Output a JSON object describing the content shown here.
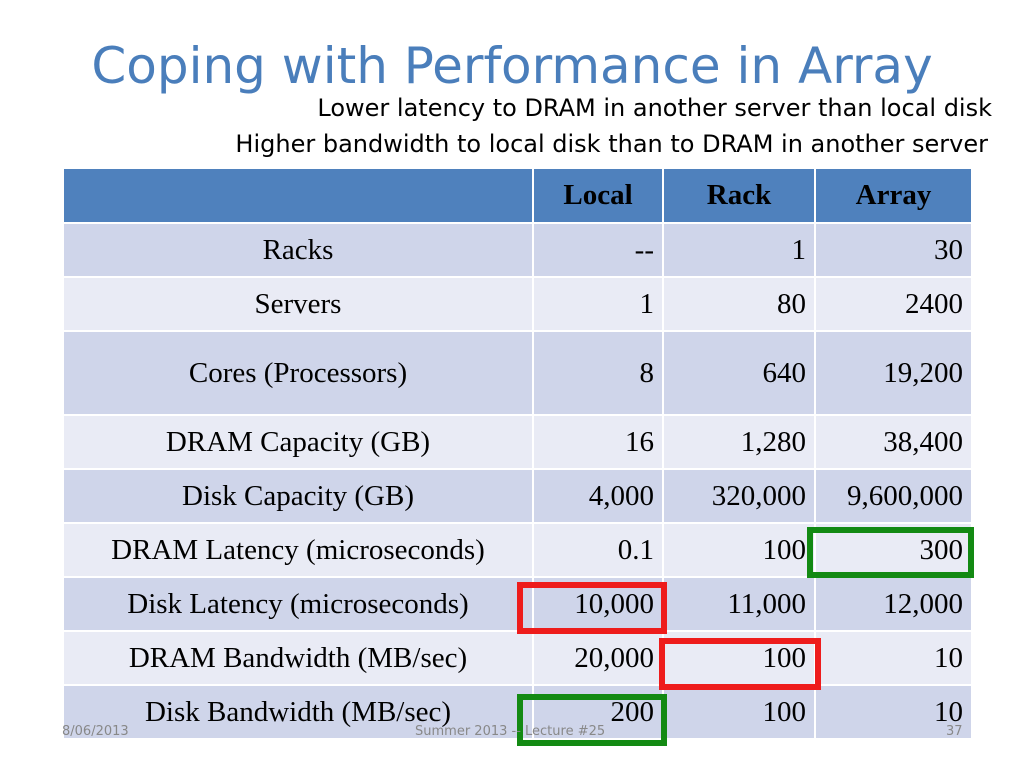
{
  "slide": {
    "title": "Coping with Performance in Array",
    "subtitle_1": "Lower latency to DRAM in another server than local disk",
    "subtitle_2": "Higher bandwidth to local disk than to DRAM in another server"
  },
  "table": {
    "headers": [
      "",
      "Local",
      "Rack",
      "Array"
    ],
    "rows": [
      {
        "label": "Racks",
        "local": "--",
        "rack": "1",
        "array": "30"
      },
      {
        "label": "Servers",
        "local": "1",
        "rack": "80",
        "array": "2400"
      },
      {
        "label": "Cores (Processors)",
        "local": "8",
        "rack": "640",
        "array": "19,200"
      },
      {
        "label": "DRAM Capacity (GB)",
        "local": "16",
        "rack": "1,280",
        "array": "38,400"
      },
      {
        "label": "Disk Capacity (GB)",
        "local": "4,000",
        "rack": "320,000",
        "array": "9,600,000"
      },
      {
        "label": "DRAM Latency (microseconds)",
        "local": "0.1",
        "rack": "100",
        "array": "300"
      },
      {
        "label": "Disk Latency (microseconds)",
        "local": "10,000",
        "rack": "11,000",
        "array": "12,000"
      },
      {
        "label": "DRAM Bandwidth (MB/sec)",
        "local": "20,000",
        "rack": "100",
        "array": "10"
      },
      {
        "label": "Disk Bandwidth (MB/sec)",
        "local": "200",
        "rack": "100",
        "array": "10"
      }
    ]
  },
  "highlights": {
    "red_color": "#ee1c1c",
    "green_color": "#138a13"
  },
  "footer": {
    "date": "8/06/2013",
    "course": "Summer 2013 -- Lecture #25",
    "page": "37"
  }
}
